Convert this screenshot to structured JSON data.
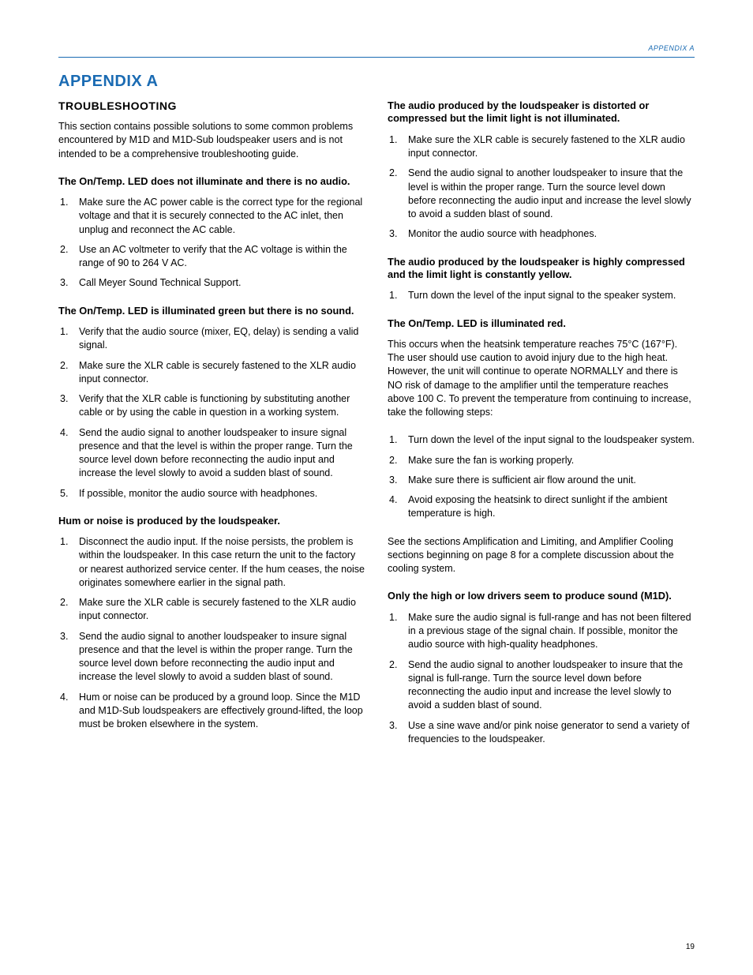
{
  "header_label": "APPENDIX A",
  "page_title": "APPENDIX A",
  "page_number": "19",
  "colors": {
    "accent": "#1a6bb3",
    "text": "#000000",
    "background": "#ffffff"
  },
  "typography": {
    "body_fontsize_pt": 12.5,
    "heading_fontsize_pt": 14,
    "title_fontsize_pt": 20,
    "line_height": 1.38
  },
  "left": {
    "section_heading": "TROUBLESHOOTING",
    "intro": "This section contains possible solutions to some common problems encountered by M1D and M1D-Sub loudspeaker users and is not intended to be a comprehensive troubleshooting guide.",
    "s1": {
      "heading": "The On/Temp. LED does not illuminate and there is no audio.",
      "items": [
        "Make sure the AC power cable is the correct type for the regional voltage and that it is securely connected to the AC inlet, then unplug and reconnect the AC cable.",
        "Use an AC voltmeter to verify that the AC voltage is within the range of 90 to 264 V AC.",
        "Call Meyer Sound Technical Support."
      ]
    },
    "s2": {
      "heading": "The On/Temp. LED is illuminated green but there is no sound.",
      "items": [
        "Verify that the audio source (mixer, EQ, delay) is sending a valid signal.",
        "Make sure the XLR cable is securely fastened to the XLR audio input connector.",
        "Verify that the XLR cable is functioning by substituting another cable or by using the cable in question in a working system.",
        "Send the audio signal to another loudspeaker to insure signal presence and that the level is within the proper range. Turn the source level down before reconnecting the audio input and increase the level slowly to avoid a sudden blast of sound.",
        "If possible, monitor the audio source with headphones."
      ]
    },
    "s3": {
      "heading": "Hum or noise is produced by the loudspeaker.",
      "items": [
        "Disconnect the audio input. If the noise persists, the problem is within the loudspeaker. In this case return the unit to the factory or nearest authorized service center. If the hum ceases, the noise originates somewhere earlier in the signal path.",
        "Make sure the XLR cable is securely fastened to the XLR audio input connector.",
        "Send the audio signal to another loudspeaker to insure signal presence and that the level is within the proper range. Turn the source level down before reconnecting the audio input and increase the level slowly to avoid a sudden blast of sound.",
        "Hum or noise can be produced by a ground loop. Since the M1D and M1D-Sub loudspeakers are effectively ground-lifted, the loop must be broken elsewhere in the system."
      ]
    }
  },
  "right": {
    "s1": {
      "heading": "The audio produced by the loudspeaker is distorted or compressed but the limit light is not illuminated.",
      "items": [
        "Make sure the XLR cable is securely fastened to the XLR audio input connector.",
        "Send the audio signal to another loudspeaker to insure that the level is within the proper range. Turn the source level down before reconnecting the audio input and increase the level slowly to avoid a sudden blast of sound.",
        "Monitor the audio source with headphones."
      ]
    },
    "s2": {
      "heading": "The audio produced by the loudspeaker is highly compressed and the limit light is constantly yellow.",
      "items": [
        "Turn down the level of the input signal to the speaker system."
      ]
    },
    "s3": {
      "heading": "The On/Temp. LED is illuminated red.",
      "intro": "This occurs when the heatsink temperature reaches 75°C (167°F). The user should use caution to avoid injury due to the high heat. However, the unit will continue to operate NORMALLY and there is NO risk of damage to the amplifier until the temperature reaches above 100 C. To prevent the temperature from continuing to increase, take the following steps:",
      "items": [
        "Turn down the level of the input signal to the loudspeaker system.",
        "Make sure the fan is working properly.",
        "Make sure there is sufficient air flow around the unit.",
        "Avoid exposing the heatsink to direct sunlight if the ambient temperature is high."
      ],
      "outro": "See the sections Amplification and Limiting, and Amplifier Cooling sections beginning on page 8 for a complete discussion about the cooling system."
    },
    "s4": {
      "heading": "Only the high or low drivers seem to produce sound (M1D).",
      "items": [
        "Make sure the audio signal is full-range and has not been filtered in a previous stage of the signal chain. If possible, monitor the audio source with high-quality headphones.",
        "Send the audio signal to another loudspeaker to insure that the signal is full-range. Turn the source level down before reconnecting the audio input and increase the level slowly to avoid a sudden blast of sound.",
        "Use a sine wave and/or pink noise generator to send a variety of frequencies to the loudspeaker."
      ]
    }
  }
}
